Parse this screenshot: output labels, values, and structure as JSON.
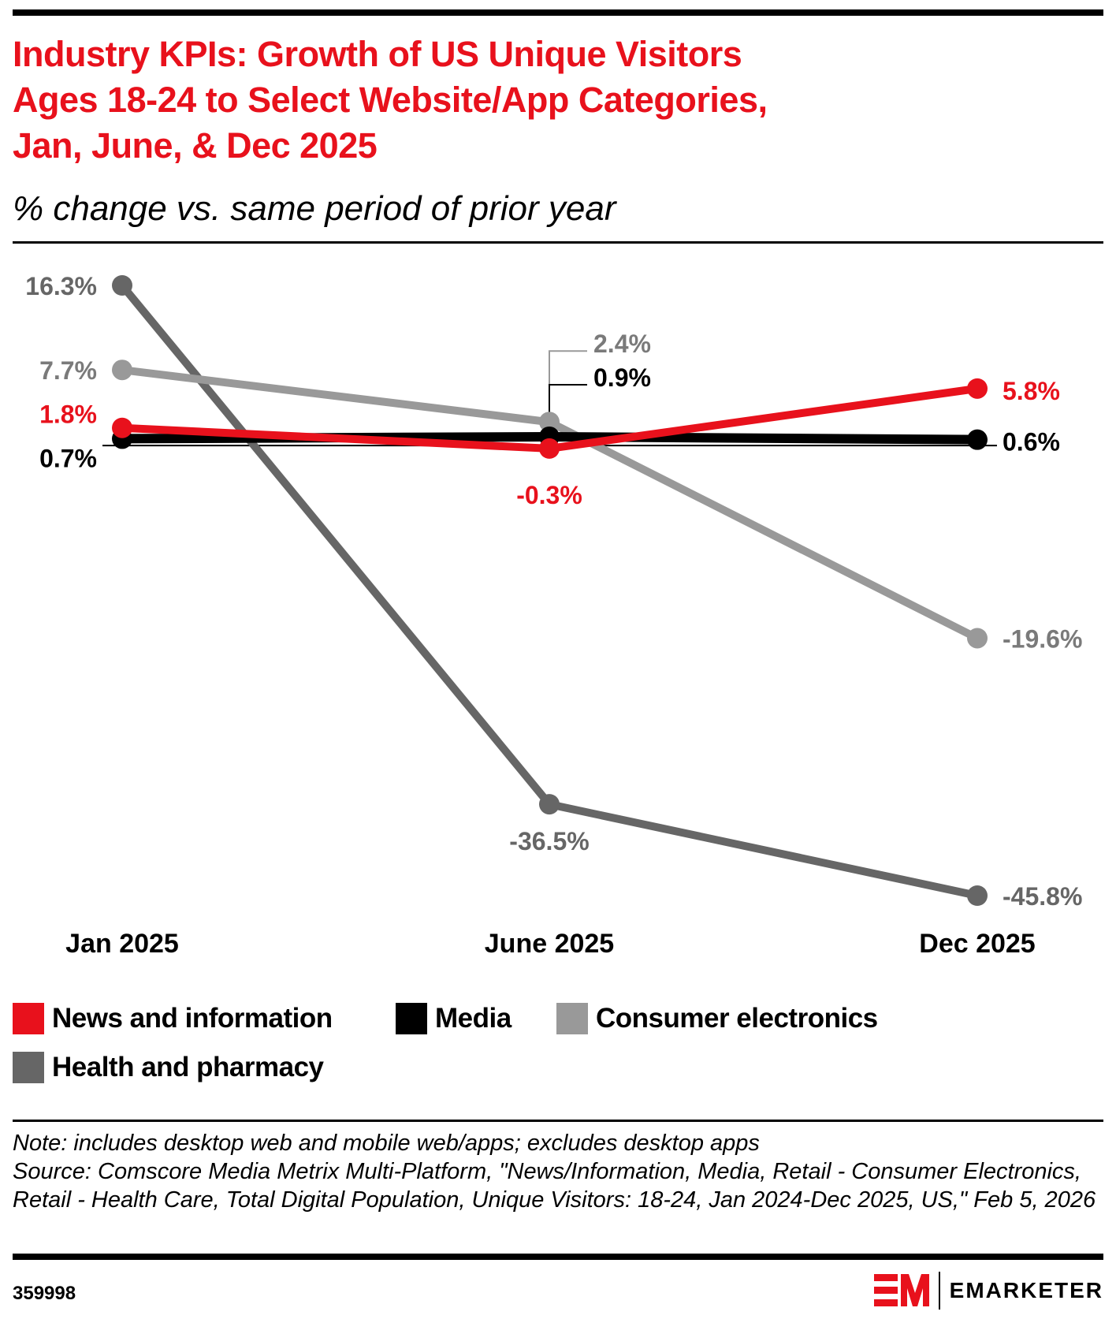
{
  "header": {
    "title_lines": [
      "Industry KPIs: Growth of US Unique Visitors",
      "Ages 18-24 to Select Website/App Categories,",
      "Jan, June, & Dec 2025"
    ],
    "subtitle": "% change vs. same period of prior year"
  },
  "chart_data": {
    "type": "line",
    "title": "Industry KPIs: Growth of US Unique Visitors Ages 18-24 to Select Website/App Categories, Jan, June, & Dec 2025",
    "subtitle": "% change vs. same period of prior year",
    "xlabel": "",
    "ylabel": "% change vs. same period of prior year",
    "categories": [
      "Jan 2025",
      "June 2025",
      "Dec 2025"
    ],
    "ylim": [
      -45.8,
      16.3
    ],
    "grid": false,
    "legend_position": "bottom-left",
    "series": [
      {
        "name": "Health and pharmacy",
        "color": "#666666",
        "values": [
          16.3,
          -36.5,
          -45.8
        ],
        "labels": [
          "16.3%",
          "-36.5%",
          "-45.8%"
        ]
      },
      {
        "name": "Consumer electronics",
        "color": "#999999",
        "values": [
          7.7,
          2.4,
          -19.6
        ],
        "labels": [
          "7.7%",
          "2.4%",
          "-19.6%"
        ]
      },
      {
        "name": "Media",
        "color": "#000000",
        "values": [
          0.7,
          0.9,
          0.6
        ],
        "labels": [
          "0.7%",
          "0.9%",
          "0.6%"
        ]
      },
      {
        "name": "News and information",
        "color": "#e8111c",
        "values": [
          1.8,
          -0.3,
          5.8
        ],
        "labels": [
          "1.8%",
          "-0.3%",
          "5.8%"
        ]
      }
    ]
  },
  "legend": [
    {
      "label": "News and information",
      "color": "#e8111c"
    },
    {
      "label": "Media",
      "color": "#000000"
    },
    {
      "label": "Consumer electronics",
      "color": "#999999"
    },
    {
      "label": "Health and pharmacy",
      "color": "#666666"
    }
  ],
  "footer": {
    "note": "Note: includes desktop web and mobile web/apps; excludes desktop apps",
    "source": "Source: Comscore Media Metrix Multi-Platform, \"News/Information, Media, Retail - Consumer Electronics, Retail - Health Care, Total Digital Population, Unique Visitors: 18-24, Jan 2024-Dec 2025, US,\" Feb 5, 2026",
    "chart_id": "359998",
    "brand": "EMARKETER",
    "brand_color": "#e8111c"
  }
}
